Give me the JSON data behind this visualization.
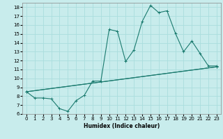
{
  "title": "",
  "xlabel": "Humidex (Indice chaleur)",
  "xlim": [
    -0.5,
    23.5
  ],
  "ylim": [
    6,
    18.5
  ],
  "xticks": [
    0,
    1,
    2,
    3,
    4,
    5,
    6,
    7,
    8,
    9,
    10,
    11,
    12,
    13,
    14,
    15,
    16,
    17,
    18,
    19,
    20,
    21,
    22,
    23
  ],
  "yticks": [
    6,
    7,
    8,
    9,
    10,
    11,
    12,
    13,
    14,
    15,
    16,
    17,
    18
  ],
  "bg_color": "#c8ecec",
  "grid_color": "#aadddd",
  "line_color": "#1a7a6e",
  "curves": [
    {
      "x": [
        0,
        1,
        2,
        3,
        4,
        5,
        6,
        7,
        8,
        9,
        10,
        11,
        12,
        13,
        14,
        15,
        16,
        17,
        18,
        19,
        20,
        21,
        22,
        23
      ],
      "y": [
        8.5,
        7.8,
        7.8,
        7.7,
        6.6,
        6.3,
        7.5,
        8.1,
        9.7,
        9.7,
        15.5,
        15.3,
        11.9,
        13.2,
        16.4,
        18.2,
        17.4,
        17.6,
        15.1,
        13.0,
        14.2,
        12.8,
        11.4,
        11.4
      ]
    },
    {
      "x": [
        0,
        23
      ],
      "y": [
        8.5,
        11.3
      ]
    },
    {
      "x": [
        0,
        23
      ],
      "y": [
        8.5,
        11.3
      ]
    }
  ]
}
